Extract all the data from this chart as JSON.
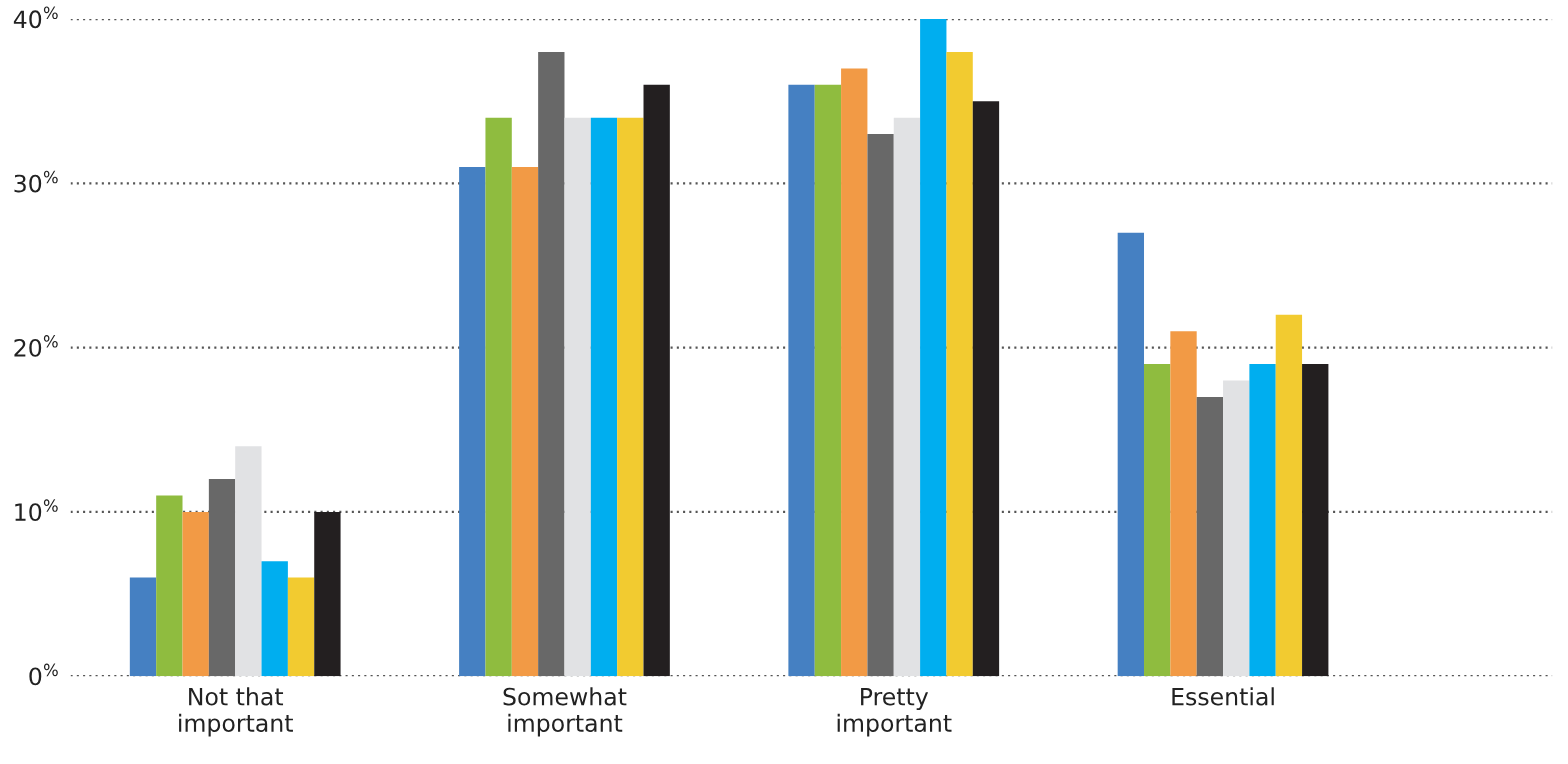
{
  "chart_data": {
    "type": "bar",
    "categories": [
      "Not that\nimportant",
      "Somewhat\nimportant",
      "Pretty\nimportant",
      "Essential"
    ],
    "series": [
      {
        "color": "#4580c2",
        "values": [
          6,
          31,
          36,
          27
        ]
      },
      {
        "color": "#8fbc3f",
        "values": [
          11,
          34,
          36,
          19
        ]
      },
      {
        "color": "#f29a45",
        "values": [
          10,
          31,
          37,
          21
        ]
      },
      {
        "color": "#686868",
        "values": [
          12,
          38,
          33,
          17
        ]
      },
      {
        "color": "#e1e2e4",
        "values": [
          14,
          34,
          34,
          18
        ]
      },
      {
        "color": "#00aeef",
        "values": [
          7,
          34,
          40,
          19
        ]
      },
      {
        "color": "#f2cb30",
        "values": [
          6,
          34,
          38,
          22
        ]
      },
      {
        "color": "#231f20",
        "values": [
          10,
          36,
          35,
          19
        ]
      }
    ],
    "ylim": [
      0,
      40
    ],
    "yticks": [
      {
        "value": 0,
        "label": "0$^{%}$"
      },
      {
        "value": 10,
        "label": "10$^{%}$"
      },
      {
        "value": 20,
        "label": "20$^{%}$"
      },
      {
        "value": 30,
        "label": "30$^{%}$"
      },
      {
        "value": 40,
        "label": "40$^{%}$"
      }
    ],
    "grid": "y"
  }
}
